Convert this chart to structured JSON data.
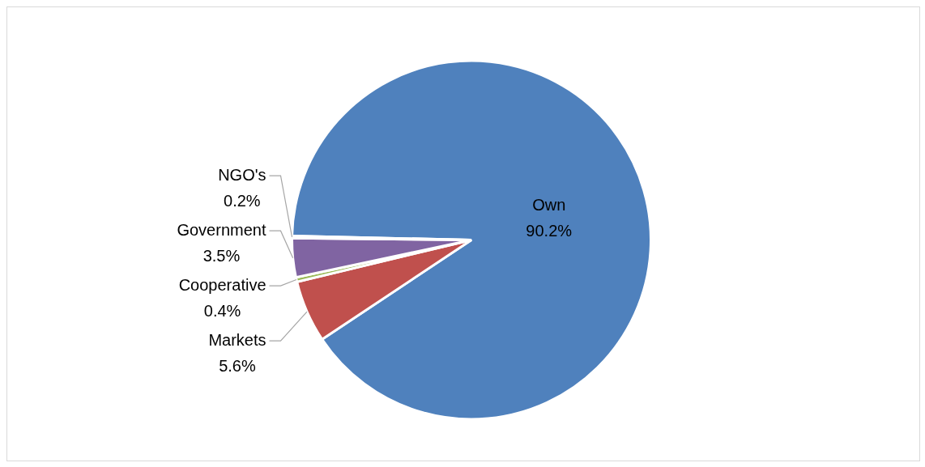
{
  "chart_data": {
    "type": "pie",
    "categories": [
      "Own",
      "Markets",
      "Cooperative",
      "Government",
      "NGO's"
    ],
    "values": [
      90.2,
      5.6,
      0.4,
      3.5,
      0.2
    ],
    "value_labels": [
      "90.2%",
      "5.6%",
      "0.4%",
      "3.5%",
      "0.2%"
    ],
    "colors": [
      "#4f81bd",
      "#c0504d",
      "#9bbb59",
      "#8064a2",
      "#4bacc6"
    ],
    "legend": false
  }
}
